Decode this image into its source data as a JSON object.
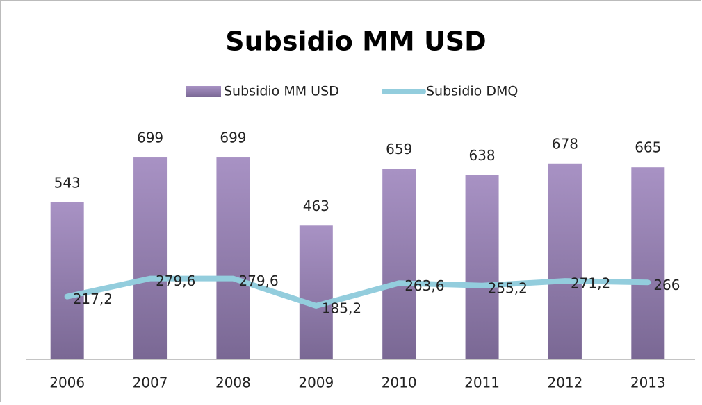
{
  "chart_data": {
    "type": "bar",
    "title": "Subsidio MM USD",
    "categories": [
      "2006",
      "2007",
      "2008",
      "2009",
      "2010",
      "2011",
      "2012",
      "2013"
    ],
    "series": [
      {
        "name": "Subsidio MM USD",
        "type": "bar",
        "color": "#9a85b5",
        "values": [
          543,
          699,
          699,
          463,
          659,
          638,
          678,
          665
        ]
      },
      {
        "name": "Subsidio DMQ",
        "type": "line",
        "color": "#93cddd",
        "values": [
          217.2,
          279.6,
          279.6,
          185.2,
          263.6,
          255.2,
          271.2,
          266
        ],
        "value_labels": [
          "217,2",
          "279,6",
          "279,6",
          "185,2",
          "263,6",
          "255,2",
          "271,2",
          "266"
        ]
      }
    ],
    "ylim": [
      0,
      800
    ],
    "legend": "top"
  }
}
